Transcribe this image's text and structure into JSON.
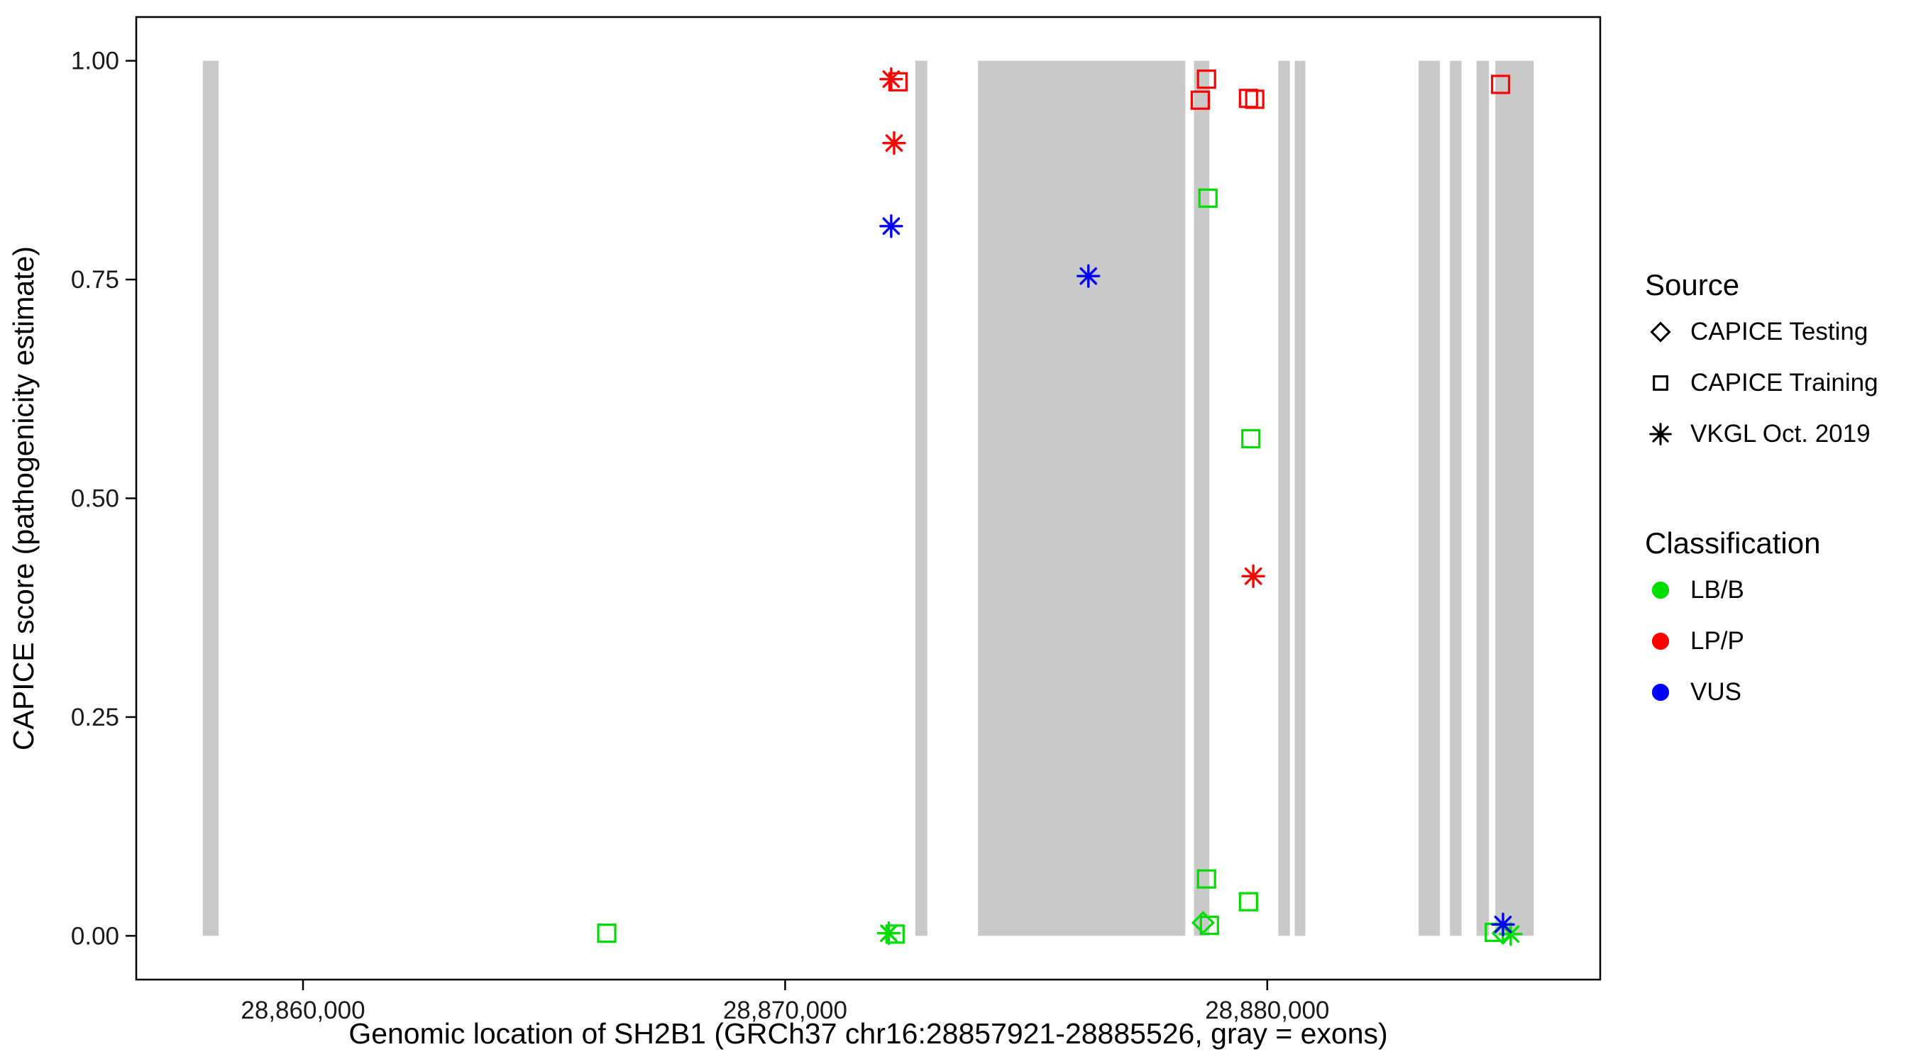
{
  "chart_data": {
    "type": "scatter",
    "title": "",
    "xlabel": "Genomic location of SH2B1 (GRCh37 chr16:28857921-28885526, gray = exons)",
    "ylabel": "CAPICE score (pathogenicity estimate)",
    "x_domain": [
      28856541,
      28886906
    ],
    "y_domain": [
      -0.05,
      1.05
    ],
    "x_ticks": [
      {
        "value": 28860000,
        "label": "28,860,000"
      },
      {
        "value": 28870000,
        "label": "28,870,000"
      },
      {
        "value": 28880000,
        "label": "28,880,000"
      }
    ],
    "y_ticks": [
      {
        "value": 0.0,
        "label": "0.00"
      },
      {
        "value": 0.25,
        "label": "0.25"
      },
      {
        "value": 0.5,
        "label": "0.50"
      },
      {
        "value": 0.75,
        "label": "0.75"
      },
      {
        "value": 1.0,
        "label": "1.00"
      }
    ],
    "grid": "off",
    "exon_color": "#c9c9c9",
    "exons": [
      [
        28857921,
        28858250
      ],
      [
        28872700,
        28872950
      ],
      [
        28874000,
        28878300
      ],
      [
        28878480,
        28878800
      ],
      [
        28880230,
        28880470
      ],
      [
        28880570,
        28880790
      ],
      [
        28883140,
        28883580
      ],
      [
        28883790,
        28884030
      ],
      [
        28884340,
        28884600
      ],
      [
        28884730,
        28885526
      ]
    ],
    "shape_by_source": {
      "CAPICE Testing": "diamond",
      "CAPICE Training": "square",
      "VKGL Oct. 2019": "asterisk"
    },
    "color_by_class": {
      "LB/B": "#00dd00",
      "LP/P": "#ff0000",
      "VUS": "#0000ff"
    },
    "points": [
      {
        "x": 28866300,
        "y": 0.003,
        "class": "LB/B",
        "source": "CAPICE Training"
      },
      {
        "x": 28872150,
        "y": 0.003,
        "class": "LB/B",
        "source": "VKGL Oct. 2019"
      },
      {
        "x": 28872280,
        "y": 0.002,
        "class": "LB/B",
        "source": "CAPICE Training"
      },
      {
        "x": 28878770,
        "y": 0.843,
        "class": "LB/B",
        "source": "CAPICE Training"
      },
      {
        "x": 28878740,
        "y": 0.065,
        "class": "LB/B",
        "source": "CAPICE Training"
      },
      {
        "x": 28878670,
        "y": 0.015,
        "class": "LB/B",
        "source": "CAPICE Testing"
      },
      {
        "x": 28878800,
        "y": 0.012,
        "class": "LB/B",
        "source": "CAPICE Training"
      },
      {
        "x": 28879660,
        "y": 0.568,
        "class": "LB/B",
        "source": "CAPICE Training"
      },
      {
        "x": 28879610,
        "y": 0.039,
        "class": "LB/B",
        "source": "CAPICE Training"
      },
      {
        "x": 28884710,
        "y": 0.004,
        "class": "LB/B",
        "source": "CAPICE Training"
      },
      {
        "x": 28884890,
        "y": 0.003,
        "class": "LB/B",
        "source": "CAPICE Testing"
      },
      {
        "x": 28885050,
        "y": 0.002,
        "class": "LB/B",
        "source": "VKGL Oct. 2019"
      },
      {
        "x": 28872200,
        "y": 0.979,
        "class": "LP/P",
        "source": "VKGL Oct. 2019"
      },
      {
        "x": 28872340,
        "y": 0.976,
        "class": "LP/P",
        "source": "CAPICE Training"
      },
      {
        "x": 28872260,
        "y": 0.906,
        "class": "LP/P",
        "source": "VKGL Oct. 2019"
      },
      {
        "x": 28878610,
        "y": 0.955,
        "class": "LP/P",
        "source": "CAPICE Training"
      },
      {
        "x": 28878740,
        "y": 0.979,
        "class": "LP/P",
        "source": "CAPICE Training"
      },
      {
        "x": 28879610,
        "y": 0.957,
        "class": "LP/P",
        "source": "CAPICE Training"
      },
      {
        "x": 28879740,
        "y": 0.956,
        "class": "LP/P",
        "source": "CAPICE Training"
      },
      {
        "x": 28879710,
        "y": 0.411,
        "class": "LP/P",
        "source": "VKGL Oct. 2019"
      },
      {
        "x": 28884840,
        "y": 0.973,
        "class": "LP/P",
        "source": "CAPICE Training"
      },
      {
        "x": 28872200,
        "y": 0.811,
        "class": "VUS",
        "source": "VKGL Oct. 2019"
      },
      {
        "x": 28876290,
        "y": 0.754,
        "class": "VUS",
        "source": "VKGL Oct. 2019"
      },
      {
        "x": 28884890,
        "y": 0.013,
        "class": "VUS",
        "source": "VKGL Oct. 2019"
      }
    ],
    "legend": {
      "position": "right",
      "source_title": "Source",
      "source_items": [
        {
          "label": "CAPICE Testing",
          "shape": "diamond"
        },
        {
          "label": "CAPICE Training",
          "shape": "square"
        },
        {
          "label": "VKGL Oct. 2019",
          "shape": "asterisk"
        }
      ],
      "class_title": "Classification",
      "class_items": [
        {
          "label": "LB/B",
          "color": "#00dd00"
        },
        {
          "label": "LP/P",
          "color": "#ff0000"
        },
        {
          "label": "VUS",
          "color": "#0000ff"
        }
      ]
    }
  }
}
